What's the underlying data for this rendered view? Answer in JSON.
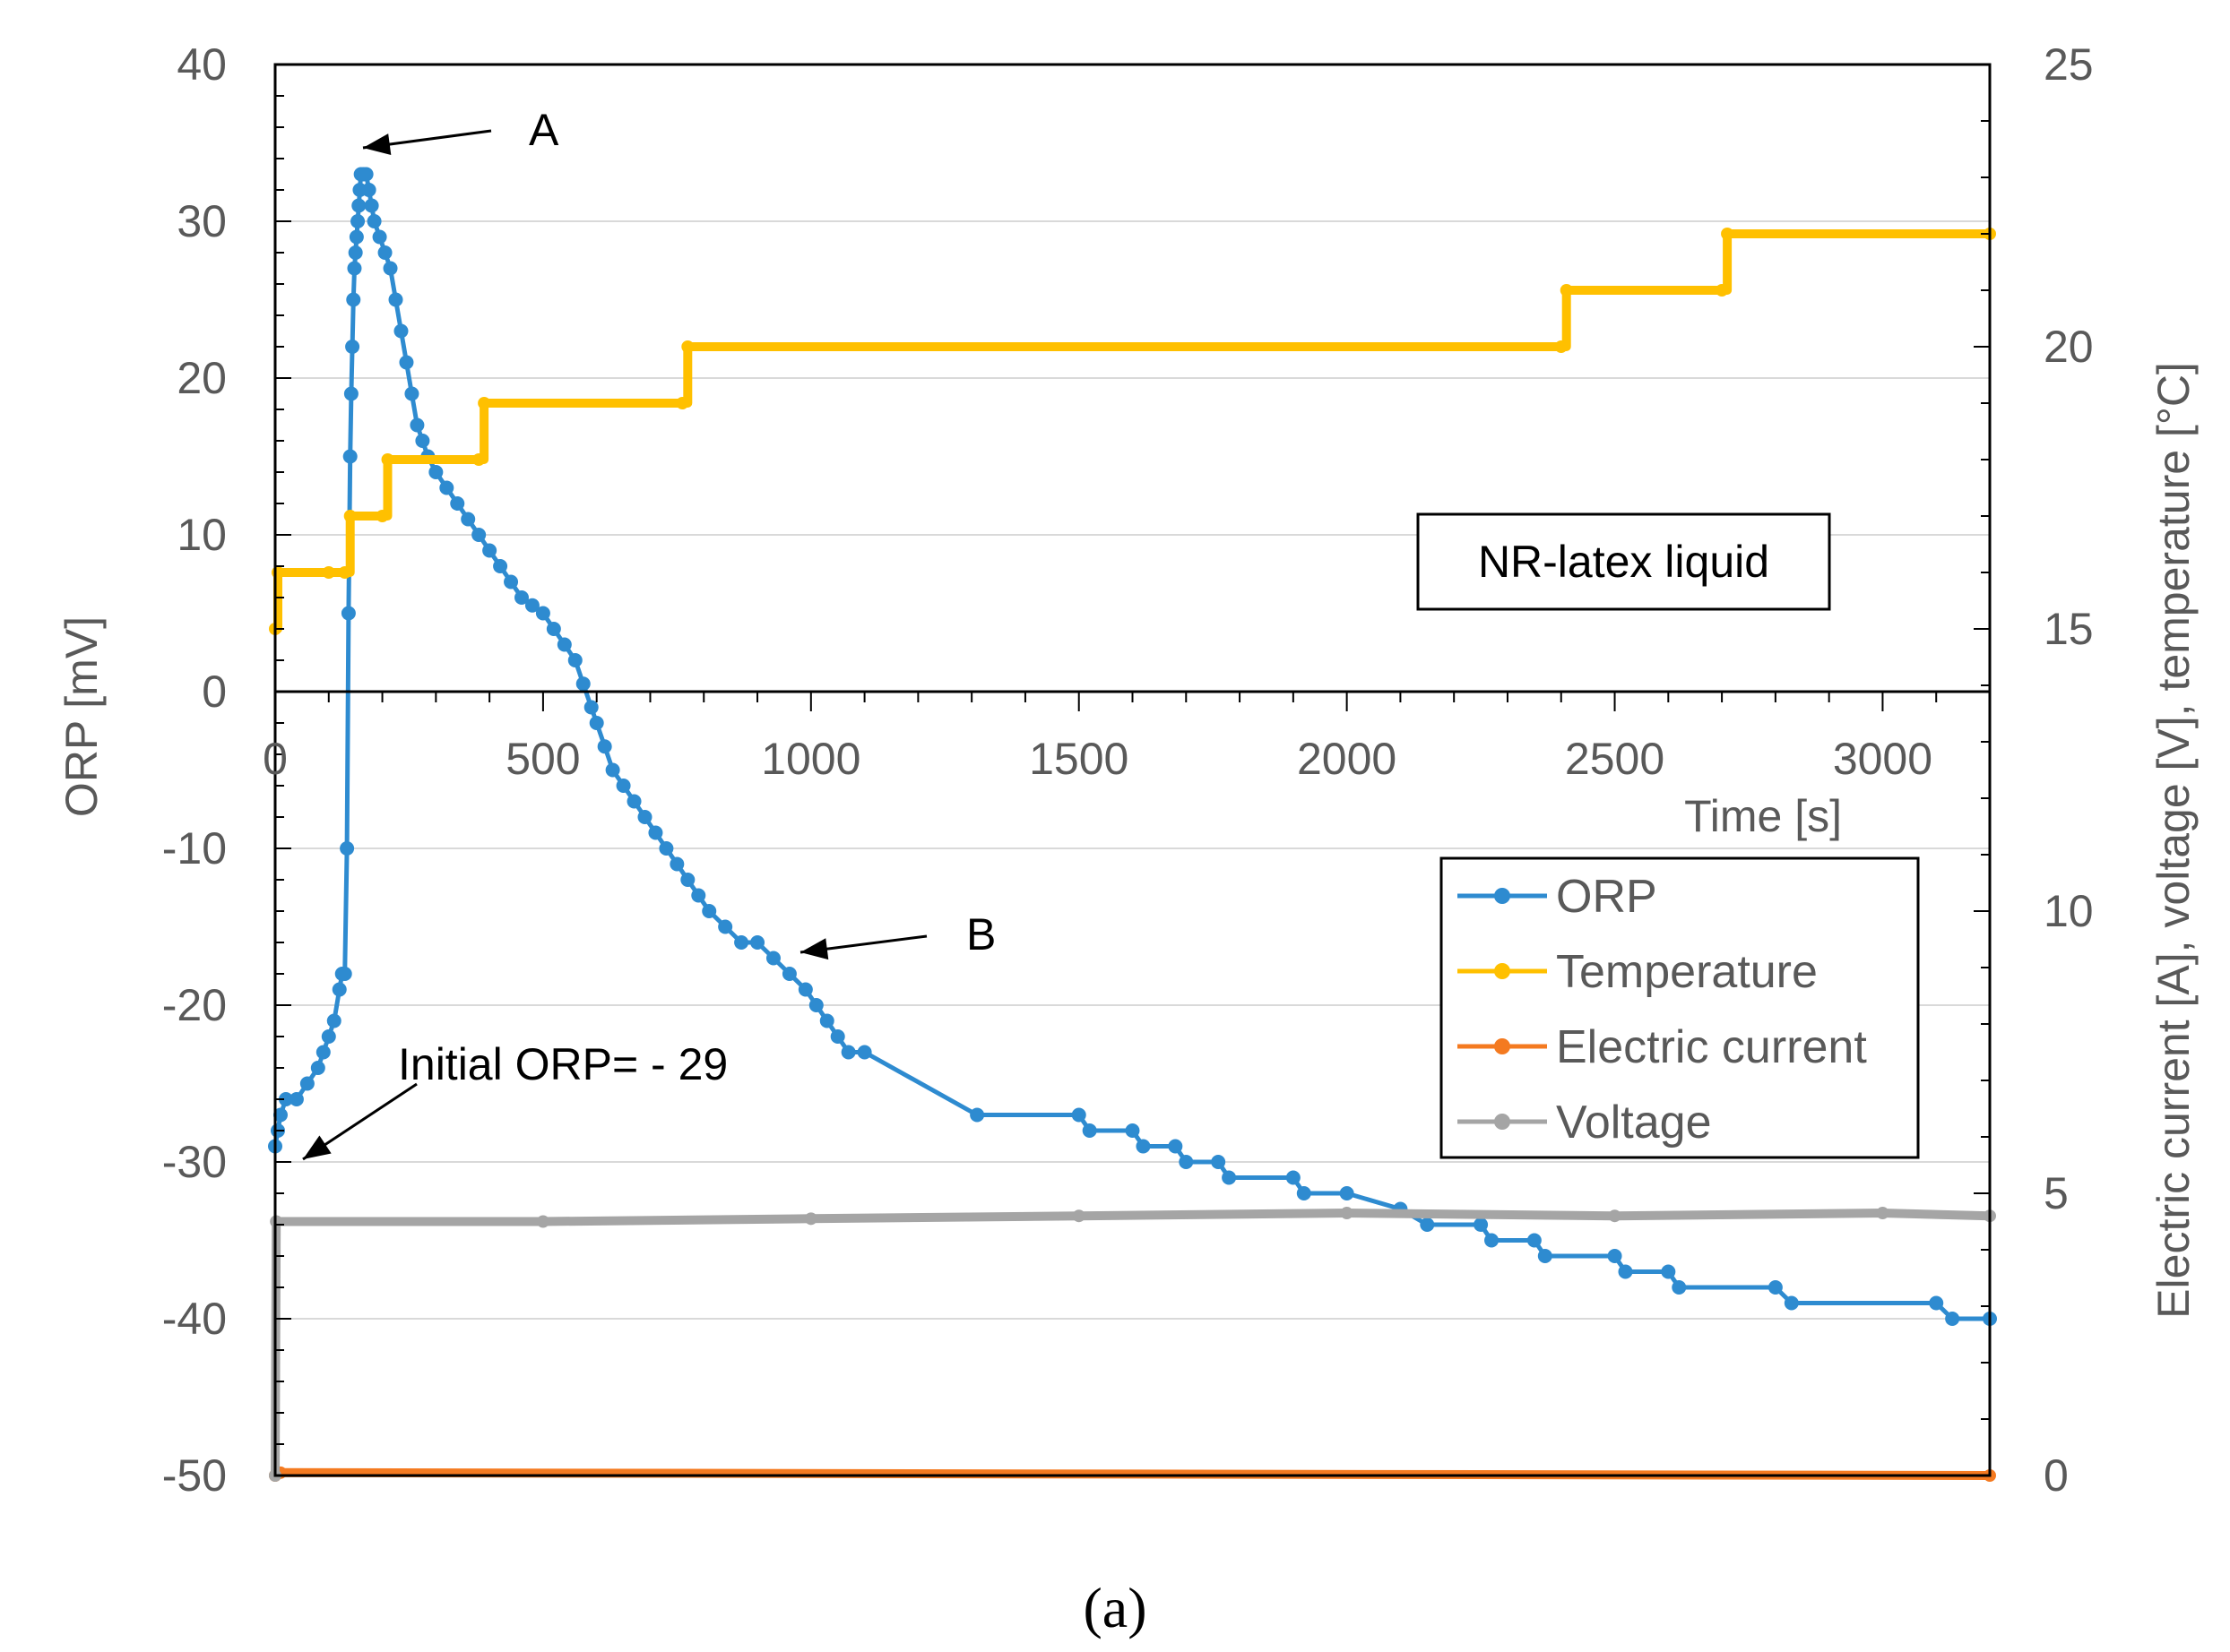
{
  "chart_data": {
    "type": "line",
    "caption": "(a)",
    "x_axis": {
      "title": "Time   [s]",
      "min": 0,
      "max": 3200,
      "ticks": [
        "0",
        "500",
        "1000",
        "1500",
        "2000",
        "2500",
        "3000"
      ],
      "tick_values": [
        0,
        500,
        1000,
        1500,
        2000,
        2500,
        3000
      ]
    },
    "y_left": {
      "title": "ORP   [mV]",
      "min": -50,
      "max": 40,
      "ticks": [
        "40",
        "30",
        "20",
        "10",
        "0",
        "-10",
        "-20",
        "-30",
        "-40",
        "-50"
      ],
      "tick_values": [
        40,
        30,
        20,
        10,
        0,
        -10,
        -20,
        -30,
        -40,
        -50
      ]
    },
    "y_right": {
      "title": "Electric current   [A], voltage   [V], temperature   [°C]",
      "min": 0,
      "max": 25,
      "ticks": [
        "25",
        "20",
        "15",
        "10",
        "5",
        "0"
      ],
      "tick_values": [
        25,
        20,
        15,
        10,
        5,
        0
      ]
    },
    "sample_label": "NR-latex liquid",
    "annotations": [
      {
        "text": "A",
        "x": 160,
        "y": 34.5,
        "axis": "left"
      },
      {
        "text": "B",
        "x": 990,
        "y": -16.5,
        "axis": "left"
      },
      {
        "text": "Initial ORP= - 29",
        "x": 60,
        "y": -23.5,
        "axis": "left"
      }
    ],
    "legend": {
      "position": "bottom-right"
    },
    "series": [
      {
        "name": "ORP",
        "axis": "left",
        "color": "#2E8BD0",
        "step": false,
        "points": [
          [
            0,
            -29
          ],
          [
            5,
            -28
          ],
          [
            10,
            -27
          ],
          [
            20,
            -26
          ],
          [
            40,
            -26
          ],
          [
            60,
            -25
          ],
          [
            80,
            -24
          ],
          [
            90,
            -23
          ],
          [
            100,
            -22
          ],
          [
            110,
            -21
          ],
          [
            120,
            -19
          ],
          [
            125,
            -18
          ],
          [
            130,
            -18
          ],
          [
            134,
            -10
          ],
          [
            137,
            5
          ],
          [
            140,
            15
          ],
          [
            142,
            19
          ],
          [
            144,
            22
          ],
          [
            146,
            25
          ],
          [
            148,
            27
          ],
          [
            150,
            28
          ],
          [
            152,
            29
          ],
          [
            154,
            30
          ],
          [
            156,
            31
          ],
          [
            158,
            32
          ],
          [
            160,
            33
          ],
          [
            165,
            33
          ],
          [
            170,
            33
          ],
          [
            175,
            32
          ],
          [
            180,
            31
          ],
          [
            185,
            30
          ],
          [
            195,
            29
          ],
          [
            205,
            28
          ],
          [
            215,
            27
          ],
          [
            225,
            25
          ],
          [
            235,
            23
          ],
          [
            245,
            21
          ],
          [
            255,
            19
          ],
          [
            265,
            17
          ],
          [
            275,
            16
          ],
          [
            285,
            15
          ],
          [
            300,
            14
          ],
          [
            320,
            13
          ],
          [
            340,
            12
          ],
          [
            360,
            11
          ],
          [
            380,
            10
          ],
          [
            400,
            9
          ],
          [
            420,
            8
          ],
          [
            440,
            7
          ],
          [
            460,
            6
          ],
          [
            480,
            5.5
          ],
          [
            500,
            5
          ],
          [
            520,
            4
          ],
          [
            540,
            3
          ],
          [
            560,
            2
          ],
          [
            575,
            0.5
          ],
          [
            590,
            -1
          ],
          [
            600,
            -2
          ],
          [
            615,
            -3.5
          ],
          [
            630,
            -5
          ],
          [
            650,
            -6
          ],
          [
            670,
            -7
          ],
          [
            690,
            -8
          ],
          [
            710,
            -9
          ],
          [
            730,
            -10
          ],
          [
            750,
            -11
          ],
          [
            770,
            -12
          ],
          [
            790,
            -13
          ],
          [
            810,
            -14
          ],
          [
            840,
            -15
          ],
          [
            870,
            -16
          ],
          [
            900,
            -16
          ],
          [
            930,
            -17
          ],
          [
            960,
            -18
          ],
          [
            990,
            -19
          ],
          [
            1010,
            -20
          ],
          [
            1030,
            -21
          ],
          [
            1050,
            -22
          ],
          [
            1070,
            -23
          ],
          [
            1100,
            -23
          ],
          [
            1310,
            -27
          ],
          [
            1500,
            -27
          ],
          [
            1520,
            -28
          ],
          [
            1600,
            -28
          ],
          [
            1620,
            -29
          ],
          [
            1680,
            -29
          ],
          [
            1700,
            -30
          ],
          [
            1760,
            -30
          ],
          [
            1780,
            -31
          ],
          [
            1900,
            -31
          ],
          [
            1920,
            -32
          ],
          [
            2000,
            -32
          ],
          [
            2100,
            -33
          ],
          [
            2150,
            -34
          ],
          [
            2250,
            -34
          ],
          [
            2270,
            -35
          ],
          [
            2350,
            -35
          ],
          [
            2370,
            -36
          ],
          [
            2500,
            -36
          ],
          [
            2520,
            -37
          ],
          [
            2600,
            -37
          ],
          [
            2620,
            -38
          ],
          [
            2800,
            -38
          ],
          [
            2830,
            -39
          ],
          [
            3100,
            -39
          ],
          [
            3130,
            -40
          ],
          [
            3200,
            -40
          ]
        ]
      },
      {
        "name": "Temperature",
        "axis": "right",
        "color": "#FFC000",
        "step": true,
        "points": [
          [
            0,
            15
          ],
          [
            5,
            16
          ],
          [
            100,
            16
          ],
          [
            130,
            16
          ],
          [
            140,
            17
          ],
          [
            200,
            17
          ],
          [
            210,
            18
          ],
          [
            380,
            18
          ],
          [
            390,
            19
          ],
          [
            760,
            19
          ],
          [
            770,
            20
          ],
          [
            2400,
            20
          ],
          [
            2410,
            21
          ],
          [
            2700,
            21
          ],
          [
            2710,
            22
          ],
          [
            3200,
            22
          ]
        ]
      },
      {
        "name": "Electric current",
        "axis": "right",
        "color": "#F47A20",
        "step": false,
        "points": [
          [
            0,
            0
          ],
          [
            10,
            0.05
          ],
          [
            3200,
            0
          ]
        ]
      },
      {
        "name": "Voltage",
        "axis": "right",
        "color": "#A5A5A5",
        "step": false,
        "points": [
          [
            0,
            0
          ],
          [
            2,
            4.5
          ],
          [
            500,
            4.5
          ],
          [
            1000,
            4.55
          ],
          [
            1500,
            4.6
          ],
          [
            2000,
            4.65
          ],
          [
            2500,
            4.6
          ],
          [
            3000,
            4.65
          ],
          [
            3200,
            4.6
          ]
        ]
      }
    ]
  }
}
